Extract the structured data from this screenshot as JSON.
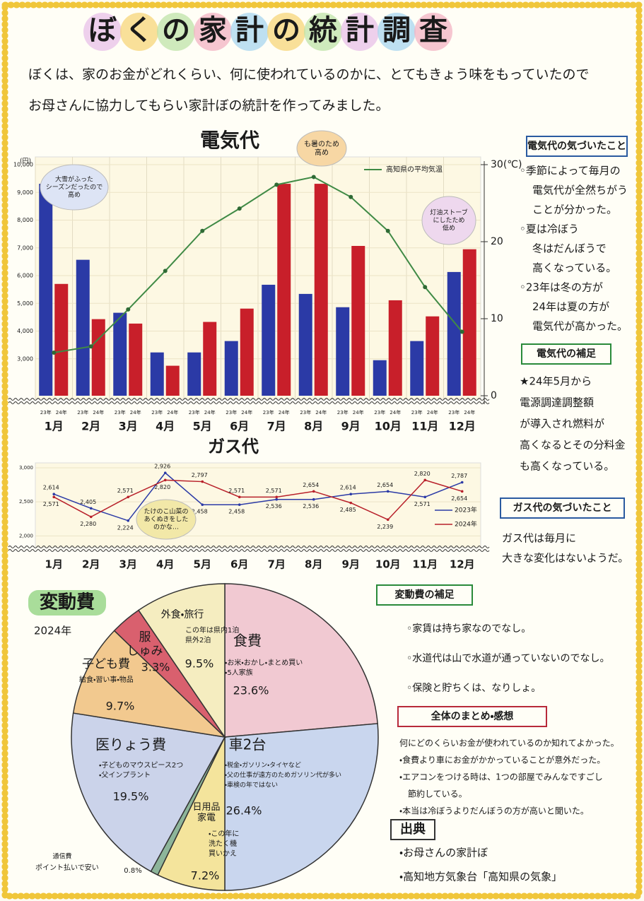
{
  "title": "ぼくの家計の統計調査",
  "intro": [
    "ぼくは、家のお金がどれくらい、何に使われているのかに、とてもきょう味をもっていたので",
    "お母さんに協力してもらい家計ぼの統計を作ってみました。"
  ],
  "chart_data": [
    {
      "type": "bar",
      "title": "電気代",
      "y_label": "(円)",
      "categories": [
        "1月",
        "2月",
        "3月",
        "4月",
        "5月",
        "6月",
        "7月",
        "8月",
        "9月",
        "10月",
        "11月",
        "12月"
      ],
      "series": [
        {
          "name": "23年",
          "color": "#2b3aa6",
          "values": [
            9310,
            6570,
            4660,
            3230,
            3230,
            3640,
            5670,
            5340,
            4860,
            2950,
            3640,
            6130
          ]
        },
        {
          "name": "24年",
          "color": "#c81f2a",
          "values": [
            5700,
            4430,
            4270,
            2750,
            4330,
            4810,
            9310,
            9310,
            7070,
            5110,
            4530,
            6950
          ]
        },
        {
          "name": "高知県の平均気温",
          "type": "line",
          "axis": "y2",
          "color": "#3f8a45",
          "values": [
            5.6,
            6.4,
            11.2,
            16.2,
            21.4,
            24.3,
            27.4,
            28.4,
            25.8,
            21.4,
            14.1,
            8.3
          ]
        }
      ],
      "ylim": [
        2000,
        10000
      ],
      "yticks": [
        {
          "value": 3000,
          "label": "3,000"
        },
        {
          "value": 4000,
          "label": "4,000"
        },
        {
          "value": 5000,
          "label": "5,000"
        },
        {
          "value": 6000,
          "label": "6,000"
        },
        {
          "value": 7000,
          "label": "7,000"
        },
        {
          "value": 8000,
          "label": "8,000"
        },
        {
          "value": 9000,
          "label": "9,000"
        },
        {
          "value": 10000,
          "label": "10,000"
        }
      ],
      "y2lim": [
        0,
        30
      ],
      "y2ticks": [
        0,
        10,
        20,
        {
          "value": 30,
          "label": "30(℃)"
        }
      ],
      "annotations": [
        [
          "大雪がふった",
          "シーズンだったので",
          "高め"
        ],
        [
          "も暑のため",
          "高め"
        ],
        [
          "灯油ストーブ",
          "にしたため",
          "低め"
        ]
      ]
    },
    {
      "type": "line",
      "title": "ガス代",
      "categories": [
        "1月",
        "2月",
        "3月",
        "4月",
        "5月",
        "6月",
        "7月",
        "8月",
        "9月",
        "10月",
        "11月",
        "12月"
      ],
      "series": [
        {
          "name": "2023年",
          "color": "#2b3aa6",
          "values": [
            2614,
            2405,
            2224,
            2926,
            2458,
            2458,
            2536,
            2536,
            2614,
            2654,
            2571,
            2787
          ],
          "value_labels": [
            "2,614",
            "2,405",
            "2,224",
            "2,926",
            "2,458",
            "2,458",
            "2,536",
            "2,536",
            "2,614",
            "2,654",
            "2,571",
            "2,787"
          ]
        },
        {
          "name": "2024年",
          "color": "#b8202a",
          "values": [
            2571,
            2280,
            2571,
            2820,
            2797,
            2571,
            2571,
            2654,
            2485,
            2239,
            2820,
            2654
          ],
          "value_labels": [
            "2,571",
            "2,280",
            "2,571",
            "2,820",
            "2,797",
            "2,571",
            "2,571",
            "2,654",
            "2,485",
            "2,239",
            "2,820",
            "2,654"
          ]
        }
      ],
      "ylim": [
        1900,
        3000
      ],
      "yticks": [
        {
          "value": 2000,
          "label": "2,000"
        },
        {
          "value": 2500,
          "label": "2,500"
        },
        {
          "value": 3000,
          "label": "3,000"
        }
      ],
      "annotations": [
        [
          "たけのこ山菜の",
          "あくぬきをした",
          "のかな…"
        ]
      ]
    },
    {
      "type": "pie",
      "title": "変動費",
      "subtitle": "2024年",
      "categories": [
        "食費",
        "車2台",
        "日用品 家電",
        "通信費",
        "医りょう費",
        "子ども費",
        "服 しゅみ",
        "外食・旅行"
      ],
      "values": [
        23.6,
        26.4,
        7.2,
        0.8,
        19.5,
        9.7,
        3.3,
        9.5
      ],
      "value_labels": [
        "23.6%",
        "26.4%",
        "7.2%",
        "0.8%",
        "19.5%",
        "9.7%",
        "3.3%",
        "9.5%"
      ],
      "colors": [
        "#f1c9d2",
        "#c9d6ee",
        "#f4e49c",
        "#8db59a",
        "#cbd3ea",
        "#f2c98f",
        "#d9606e",
        "#f5edc0"
      ],
      "details": [
        [
          "・お米・おかし・まとめ買い",
          "・5人家族"
        ],
        [
          "・税金・ガソリン・タイヤなど",
          "・父の仕事が遠方のためガソリン代が多い",
          "・車検の年ではない"
        ],
        [
          "・この年に",
          "洗たく機",
          "買いかえ"
        ],
        [
          "ポイント払いで安い"
        ],
        [
          "・子どものマウスピース2つ",
          "・父インプラント"
        ],
        [
          "給食・習い事・物品"
        ],
        [],
        [
          "この年は県内1泊",
          "県外2泊"
        ]
      ]
    }
  ],
  "notes": {
    "electricity_findings": {
      "title": "電気代の気づいたこと",
      "lines": [
        "◦季節によって毎月の",
        "電気代が全然ちがう",
        "ことが分かった。",
        "◦夏は冷ぼう",
        "冬はだんぼうで",
        "高くなっている。",
        "◦23年は冬の方が",
        "24年は夏の方が",
        "電気代が高かった。"
      ]
    },
    "electricity_supplement": {
      "title": "電気代の補足",
      "lines": [
        "★24年5月から",
        "電源調達調整額",
        "が導入され燃料が",
        "高くなるとその分料金",
        "も高くなっている。"
      ]
    },
    "gas_findings": {
      "title": "ガス代の気づいたこと",
      "lines": [
        "ガス代は毎月に",
        "大きな変化はないようだ。"
      ]
    },
    "variable_supplement": {
      "title": "変動費の補足",
      "lines": [
        "◦家賃は持ち家なのでなし。",
        "◦水道代は山で水道が通っていないのでなし。",
        "◦保険と貯ちくは、なりしょ。"
      ]
    },
    "summary": {
      "title": "全体のまとめ・感想",
      "lines": [
        "何にどのくらいお金が使われているのか知れてよかった。",
        "・食費より車にお金がかかっていることが意外だった。",
        "・エアコンをつける時は、1つの部屋でみんなですごし",
        "節約している。",
        "・本当は冷ぼうよりだんぼうの方が高いと聞いた。"
      ]
    },
    "sources": {
      "title": "出典",
      "lines": [
        "・お母さんの家計ぼ",
        "・高知地方気象台「高知県の気象」"
      ]
    }
  }
}
